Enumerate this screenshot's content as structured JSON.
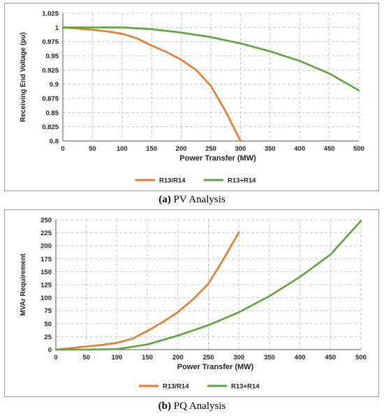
{
  "colors": {
    "series_orange": "#E87B2E",
    "series_green": "#5BA53B",
    "grid": "#c8c8c8",
    "axis": "#555555"
  },
  "captions": {
    "a": {
      "label": "(a)",
      "text": "PV Analysis"
    },
    "b": {
      "label": "(b)",
      "text": "PQ Analysis"
    }
  },
  "chart_data": [
    {
      "type": "line",
      "title": "",
      "xlabel": "Power Transfer (MW)",
      "ylabel": "Receiving End Voltage (pu)",
      "xlim": [
        0,
        500
      ],
      "ylim": [
        0.8,
        1.025
      ],
      "x_ticks": [
        "0",
        "50",
        "100",
        "150",
        "200",
        "250",
        "300",
        "350",
        "400",
        "450",
        "500"
      ],
      "y_ticks": [
        "0.8",
        "0.825",
        "0.85",
        "0.875",
        "0.9",
        "0.925",
        "0.95",
        "0.975",
        "1",
        "1.025"
      ],
      "grid": "dashed",
      "legend_position": "bottom",
      "series": [
        {
          "name": "R13/R14",
          "color": "#E87B2E",
          "x": [
            0,
            25,
            50,
            75,
            100,
            125,
            150,
            175,
            200,
            225,
            250,
            275,
            300
          ],
          "y": [
            1.0,
            0.998,
            0.996,
            0.993,
            0.989,
            0.981,
            0.968,
            0.957,
            0.943,
            0.925,
            0.897,
            0.852,
            0.8
          ]
        },
        {
          "name": "R13+R14",
          "color": "#5BA53B",
          "x": [
            0,
            50,
            100,
            150,
            200,
            250,
            300,
            350,
            400,
            450,
            500
          ],
          "y": [
            1.0,
            1.0,
            1.0,
            0.997,
            0.991,
            0.983,
            0.972,
            0.958,
            0.941,
            0.919,
            0.889
          ]
        }
      ]
    },
    {
      "type": "line",
      "title": "",
      "xlabel": "Power Transfer (MW)",
      "ylabel": "MVAr Requirement",
      "xlim": [
        0,
        500
      ],
      "ylim": [
        0,
        250
      ],
      "x_ticks": [
        "0",
        "50",
        "100",
        "150",
        "200",
        "250",
        "300",
        "350",
        "400",
        "450",
        "500"
      ],
      "y_ticks": [
        "0",
        "25",
        "50",
        "75",
        "100",
        "125",
        "150",
        "175",
        "200",
        "225",
        "250"
      ],
      "grid": "dashed",
      "legend_position": "bottom",
      "series": [
        {
          "name": "R13/R14",
          "color": "#E87B2E",
          "x": [
            0,
            25,
            50,
            75,
            100,
            125,
            150,
            175,
            200,
            225,
            250,
            275,
            300
          ],
          "y": [
            0,
            3,
            6,
            9,
            13,
            21,
            36,
            53,
            72,
            97,
            127,
            175,
            226
          ]
        },
        {
          "name": "R13+R14",
          "color": "#5BA53B",
          "x": [
            0,
            50,
            100,
            150,
            200,
            250,
            300,
            350,
            400,
            450,
            500
          ],
          "y": [
            0,
            0,
            1,
            10,
            27,
            47,
            72,
            103,
            140,
            183,
            248
          ]
        }
      ]
    }
  ]
}
